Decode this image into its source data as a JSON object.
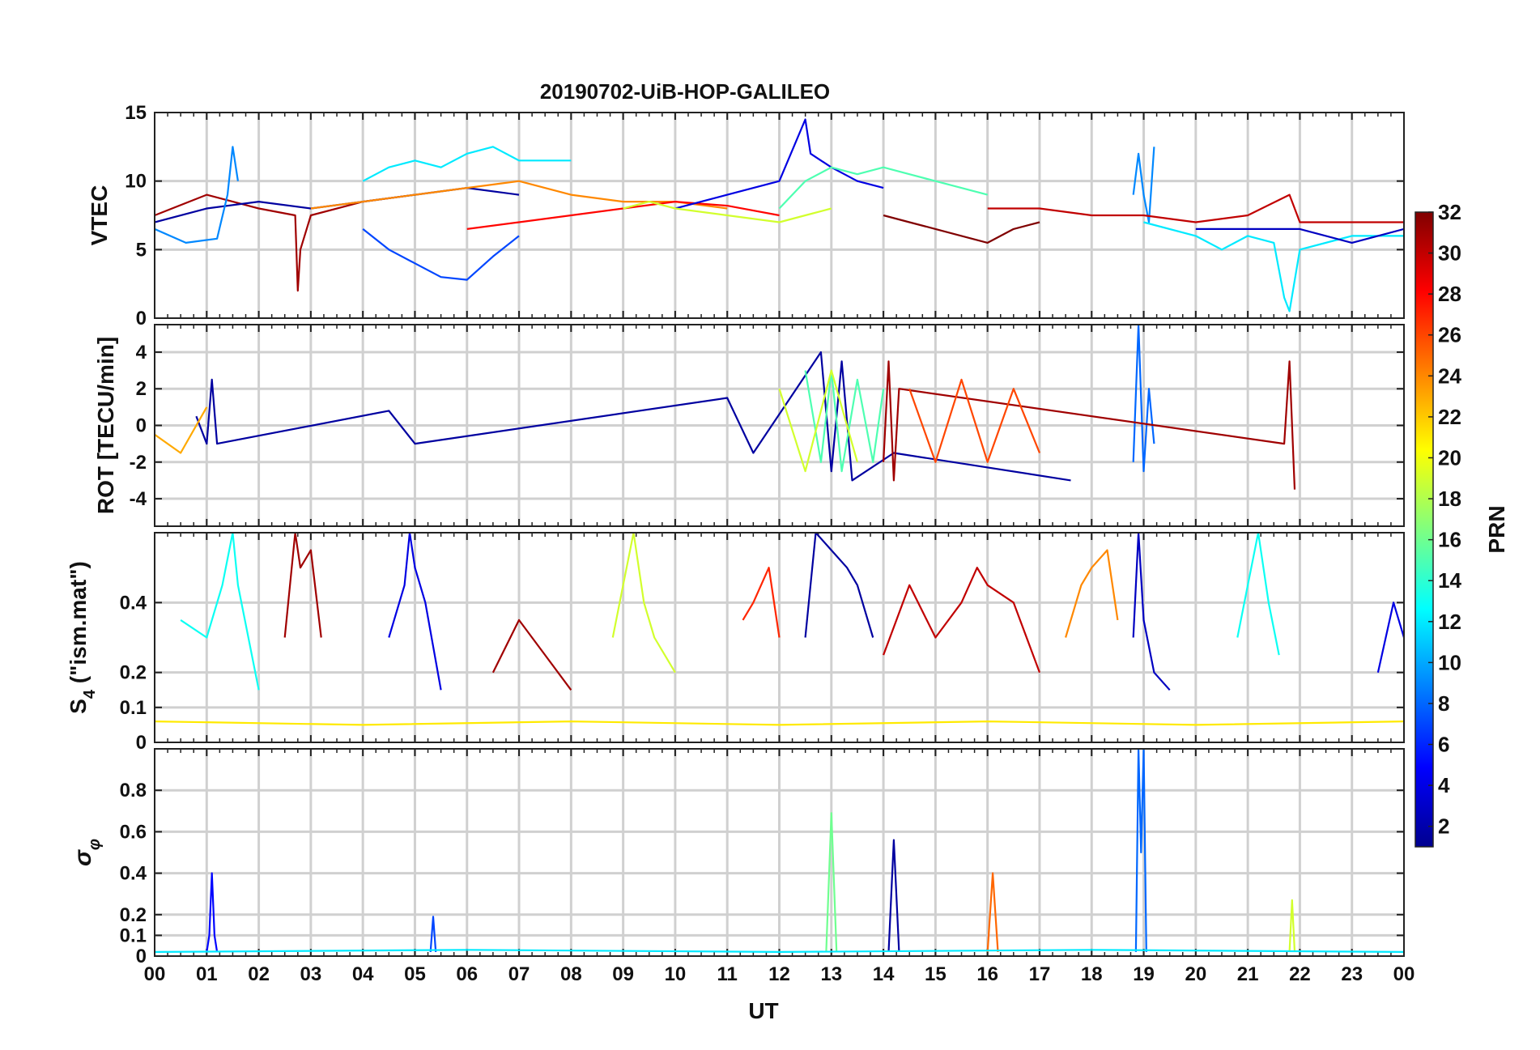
{
  "figure": {
    "title": "20190702-UiB-HOP-GALILEO",
    "xlabel": "UT",
    "x_ticks": [
      "00",
      "01",
      "02",
      "03",
      "04",
      "05",
      "06",
      "07",
      "08",
      "09",
      "10",
      "11",
      "12",
      "13",
      "14",
      "15",
      "16",
      "17",
      "18",
      "19",
      "20",
      "21",
      "22",
      "23",
      "00"
    ]
  },
  "colorbar": {
    "label": "PRN",
    "ticks": [
      "2",
      "4",
      "6",
      "8",
      "10",
      "12",
      "14",
      "16",
      "18",
      "20",
      "22",
      "24",
      "26",
      "28",
      "30",
      "32"
    ],
    "range": [
      1,
      32
    ],
    "colormap": "jet"
  },
  "chart_data": [
    {
      "type": "line",
      "panel": "vtec",
      "ylabel": "VTEC",
      "ylim": [
        0,
        15
      ],
      "y_ticks": [
        "0",
        "5",
        "10",
        "15"
      ],
      "xlim": [
        0,
        24
      ],
      "grid": true,
      "series": [
        {
          "prn": 31,
          "x": [
            0,
            1,
            2,
            2.7,
            2.75,
            2.8,
            3,
            4,
            5
          ],
          "y": [
            7.5,
            9,
            8,
            7.5,
            2,
            5,
            7.5,
            8.5,
            9
          ]
        },
        {
          "prn": 2,
          "x": [
            0,
            1,
            2,
            3,
            4,
            5,
            6,
            7
          ],
          "y": [
            7,
            8,
            8.5,
            8,
            8.5,
            9,
            9.5,
            9
          ]
        },
        {
          "prn": 9,
          "x": [
            0,
            0.6,
            1.2,
            1.4,
            1.5,
            1.6
          ],
          "y": [
            6.5,
            5.5,
            5.8,
            9,
            12.5,
            10
          ]
        },
        {
          "prn": 12,
          "x": [
            4,
            4.5,
            5,
            5.5,
            6,
            6.5,
            7,
            8
          ],
          "y": [
            10,
            11,
            11.5,
            11,
            12,
            12.5,
            11.5,
            11.5
          ]
        },
        {
          "prn": 7,
          "x": [
            4,
            4.5,
            5,
            5.5,
            6,
            6.5,
            7
          ],
          "y": [
            6.5,
            5,
            4,
            3,
            2.8,
            4.5,
            6
          ]
        },
        {
          "prn": 24,
          "x": [
            3,
            4,
            5,
            6,
            7,
            8,
            9,
            10,
            11
          ],
          "y": [
            8,
            8.5,
            9,
            9.5,
            10,
            9,
            8.5,
            8.5,
            8
          ]
        },
        {
          "prn": 28,
          "x": [
            6,
            7,
            8,
            9,
            10,
            11,
            12
          ],
          "y": [
            6.5,
            7,
            7.5,
            8,
            8.5,
            8.2,
            7.5
          ]
        },
        {
          "prn": 4,
          "x": [
            10,
            11,
            12,
            12.5,
            12.6,
            13,
            13.5,
            14
          ],
          "y": [
            8,
            9,
            10,
            14.5,
            12,
            11,
            10,
            9.5
          ]
        },
        {
          "prn": 15,
          "x": [
            12,
            12.5,
            13,
            13.5,
            14,
            14.5,
            15,
            16
          ],
          "y": [
            8,
            10,
            11,
            10.5,
            11,
            10.5,
            10,
            9
          ]
        },
        {
          "prn": 19,
          "x": [
            9,
            9.5,
            10,
            11,
            12,
            12.5,
            13
          ],
          "y": [
            8,
            8.5,
            8,
            7.5,
            7,
            7.5,
            8
          ]
        },
        {
          "prn": 32,
          "x": [
            14,
            14.5,
            15,
            15.5,
            16,
            16.5,
            17
          ],
          "y": [
            7.5,
            7,
            6.5,
            6,
            5.5,
            6.5,
            7
          ]
        },
        {
          "prn": 9,
          "x": [
            18.8,
            18.9,
            19,
            19.1,
            19.2
          ],
          "y": [
            9,
            12,
            9,
            7,
            12.5
          ]
        },
        {
          "prn": 12,
          "x": [
            19,
            20,
            20.5,
            21,
            21.5,
            21.7,
            21.8,
            22,
            23,
            24
          ],
          "y": [
            7,
            6,
            5,
            6,
            5.5,
            1.5,
            0.5,
            5,
            6,
            6
          ]
        },
        {
          "prn": 30,
          "x": [
            16,
            17,
            18,
            19,
            20,
            21,
            21.8,
            22,
            23,
            24
          ],
          "y": [
            8,
            8,
            7.5,
            7.5,
            7,
            7.5,
            9,
            7,
            7,
            7
          ]
        },
        {
          "prn": 3,
          "x": [
            20,
            21,
            22,
            23,
            23.5,
            24
          ],
          "y": [
            6.5,
            6.5,
            6.5,
            5.5,
            6,
            6.5
          ]
        }
      ]
    },
    {
      "type": "line",
      "panel": "rot",
      "ylabel": "ROT [TECU/min]",
      "ylim": [
        -5.5,
        5.5
      ],
      "y_ticks": [
        "-4",
        "-2",
        "0",
        "2",
        "4"
      ],
      "xlim": [
        0,
        24
      ],
      "grid": true,
      "series": [
        {
          "prn": 2,
          "x": [
            0.8,
            1,
            1.1,
            1.2,
            4.5,
            5,
            11,
            11.5,
            12.8,
            13,
            13.2,
            13.4,
            14.2,
            17.6
          ],
          "y": [
            0.5,
            -1,
            2.5,
            -1,
            0.8,
            -1,
            1.5,
            -1.5,
            4,
            -2.5,
            3.5,
            -3,
            -1.5,
            -3
          ]
        },
        {
          "prn": 8,
          "x": [
            18.8,
            18.9,
            19,
            19.1,
            19.2
          ],
          "y": [
            -2,
            5.5,
            -2.5,
            2,
            -1
          ]
        },
        {
          "prn": 31,
          "x": [
            14,
            14.1,
            14.2,
            14.3,
            21.7,
            21.8,
            21.9
          ],
          "y": [
            -2,
            3.5,
            -3,
            2,
            -1,
            3.5,
            -3.5
          ]
        },
        {
          "prn": 15,
          "x": [
            12.5,
            12.8,
            13,
            13.2,
            13.5,
            13.8,
            14
          ],
          "y": [
            3,
            -2,
            3,
            -2.5,
            2.5,
            -2,
            2
          ]
        },
        {
          "prn": 26,
          "x": [
            14.5,
            15,
            15.5,
            16,
            16.5,
            17
          ],
          "y": [
            2,
            -2,
            2.5,
            -2,
            2,
            -1.5
          ]
        },
        {
          "prn": 19,
          "x": [
            12,
            12.5,
            13,
            13.5
          ],
          "y": [
            2,
            -2.5,
            3,
            -2
          ]
        },
        {
          "prn": 23,
          "x": [
            0,
            0.5,
            1
          ],
          "y": [
            -0.5,
            -1.5,
            1
          ]
        }
      ]
    },
    {
      "type": "line",
      "panel": "s4",
      "ylabel": "S4 (\"ism.mat\")",
      "ylabel_main": "S",
      "ylabel_sub": "4",
      "ylabel_rest": " (\"ism.mat\")",
      "ylim": [
        0,
        0.6
      ],
      "y_ticks": [
        "0",
        "0.1",
        "0.2",
        "0.4"
      ],
      "xlim": [
        0,
        24
      ],
      "grid": true,
      "series": [
        {
          "prn": 13,
          "x": [
            0.5,
            1,
            1.3,
            1.5,
            1.6,
            2
          ],
          "y": [
            0.35,
            0.3,
            0.45,
            0.6,
            0.45,
            0.15
          ]
        },
        {
          "prn": 31,
          "x": [
            2.5,
            2.7,
            2.8,
            3,
            3.2
          ],
          "y": [
            0.3,
            0.6,
            0.5,
            0.55,
            0.3
          ]
        },
        {
          "prn": 4,
          "x": [
            4.5,
            4.8,
            4.9,
            5,
            5.2,
            5.5
          ],
          "y": [
            0.3,
            0.45,
            0.6,
            0.5,
            0.4,
            0.15
          ]
        },
        {
          "prn": 31,
          "x": [
            6.5,
            7,
            7.5,
            8
          ],
          "y": [
            0.2,
            0.35,
            0.25,
            0.15
          ]
        },
        {
          "prn": 19,
          "x": [
            8.8,
            9,
            9.2,
            9.4,
            9.6,
            10
          ],
          "y": [
            0.3,
            0.45,
            0.6,
            0.4,
            0.3,
            0.2
          ]
        },
        {
          "prn": 27,
          "x": [
            11.3,
            11.5,
            11.8,
            12
          ],
          "y": [
            0.35,
            0.4,
            0.5,
            0.3
          ]
        },
        {
          "prn": 2,
          "x": [
            12.5,
            12.7,
            13,
            13.3,
            13.5,
            13.8
          ],
          "y": [
            0.3,
            0.6,
            0.55,
            0.5,
            0.45,
            0.3
          ]
        },
        {
          "prn": 30,
          "x": [
            14,
            14.5,
            15,
            15.5,
            15.8,
            16,
            16.5,
            17
          ],
          "y": [
            0.25,
            0.45,
            0.3,
            0.4,
            0.5,
            0.45,
            0.4,
            0.2
          ]
        },
        {
          "prn": 24,
          "x": [
            17.5,
            17.8,
            18,
            18.3,
            18.5
          ],
          "y": [
            0.3,
            0.45,
            0.5,
            0.55,
            0.35
          ]
        },
        {
          "prn": 3,
          "x": [
            18.8,
            18.9,
            19,
            19.2,
            19.5
          ],
          "y": [
            0.3,
            0.6,
            0.35,
            0.2,
            0.15
          ]
        },
        {
          "prn": 13,
          "x": [
            20.8,
            21,
            21.2,
            21.4,
            21.6
          ],
          "y": [
            0.3,
            0.45,
            0.6,
            0.4,
            0.25
          ]
        },
        {
          "prn": 4,
          "x": [
            23.5,
            23.8,
            24
          ],
          "y": [
            0.2,
            0.4,
            0.3
          ]
        },
        {
          "prn": 21,
          "x": [
            0,
            4,
            8,
            12,
            16,
            20,
            24
          ],
          "y": [
            0.06,
            0.05,
            0.06,
            0.05,
            0.06,
            0.05,
            0.06
          ]
        }
      ]
    },
    {
      "type": "line",
      "panel": "sigma_phi",
      "ylabel": "σφ",
      "ylabel_main": "σ",
      "ylabel_sub": "φ",
      "ylim": [
        0,
        1
      ],
      "y_ticks": [
        "0",
        "0.1",
        "0.2",
        "0.4",
        "0.6",
        "0.8"
      ],
      "xlim": [
        0,
        24
      ],
      "grid": true,
      "series": [
        {
          "prn": 5,
          "x": [
            1,
            1.05,
            1.1,
            1.15,
            1.2
          ],
          "y": [
            0.02,
            0.1,
            0.4,
            0.1,
            0.02
          ]
        },
        {
          "prn": 7,
          "x": [
            5.3,
            5.35,
            5.4
          ],
          "y": [
            0.02,
            0.19,
            0.02
          ]
        },
        {
          "prn": 16,
          "x": [
            12.9,
            13,
            13.1
          ],
          "y": [
            0.02,
            0.69,
            0.02
          ]
        },
        {
          "prn": 2,
          "x": [
            14.1,
            14.2,
            14.3
          ],
          "y": [
            0.02,
            0.56,
            0.02
          ]
        },
        {
          "prn": 25,
          "x": [
            16,
            16.1,
            16.2
          ],
          "y": [
            0.02,
            0.4,
            0.02
          ]
        },
        {
          "prn": 8,
          "x": [
            18.85,
            18.9,
            18.95,
            19,
            19.05
          ],
          "y": [
            0.02,
            1,
            0.5,
            1,
            0.02
          ]
        },
        {
          "prn": 19,
          "x": [
            21.8,
            21.85,
            21.9
          ],
          "y": [
            0.02,
            0.27,
            0.02
          ]
        },
        {
          "prn": 12,
          "x": [
            0,
            6,
            12,
            18,
            24
          ],
          "y": [
            0.02,
            0.03,
            0.02,
            0.03,
            0.02
          ]
        }
      ]
    }
  ]
}
